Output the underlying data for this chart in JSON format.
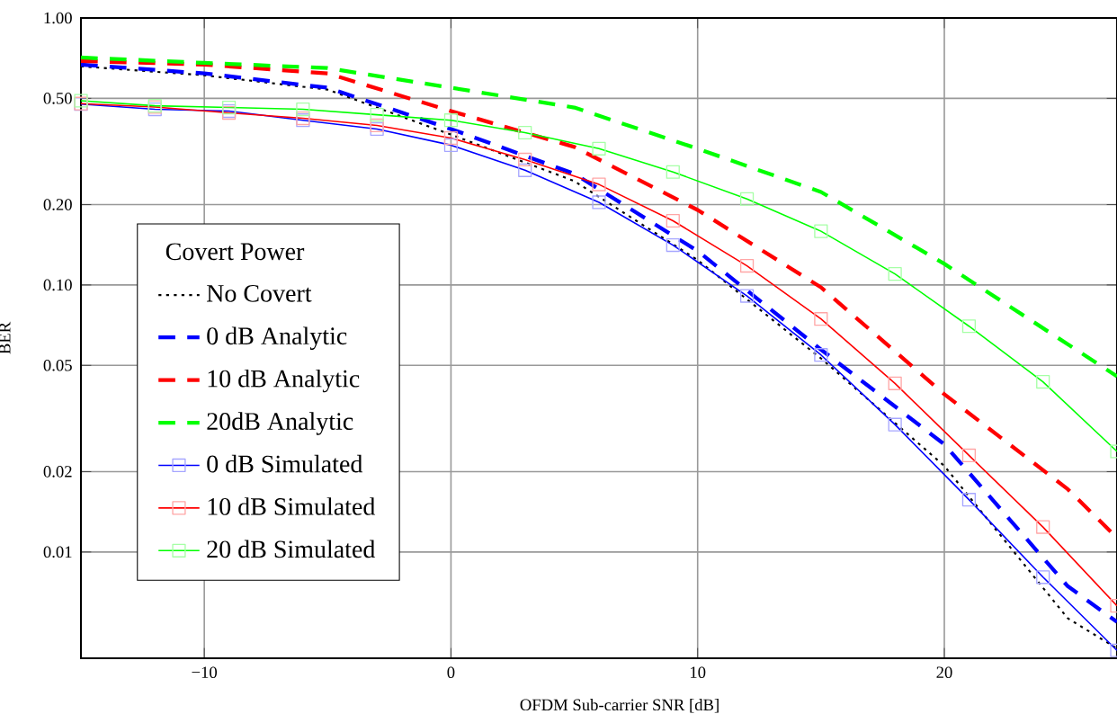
{
  "chart_data": {
    "type": "line",
    "xlabel": "OFDM Sub-carrier SNR [dB]",
    "ylabel": "BER",
    "legend_title": "Covert Power",
    "log": "y",
    "grid": true,
    "legend": "left",
    "xlim": [
      -15,
      27
    ],
    "xticks": [
      {
        "value": -10,
        "label": "−10"
      },
      0,
      10,
      20
    ],
    "ylim": [
      0.004,
      1
    ],
    "yticks": [
      {
        "value": 0.01,
        "label": "0.01"
      },
      {
        "value": 0.02,
        "label": "0.02"
      },
      {
        "value": 0.05,
        "label": "0.05"
      },
      {
        "value": 0.1,
        "label": "0.10"
      },
      {
        "value": 0.2,
        "label": "0.20"
      },
      {
        "value": 0.5,
        "label": "0.50"
      },
      {
        "value": 1,
        "label": "1.00"
      }
    ],
    "series": [
      {
        "name": "No Covert",
        "color": "#000000",
        "line_style": "dotted",
        "marker": "none",
        "x": [
          -15,
          -10,
          -5,
          0,
          5,
          10,
          15,
          20,
          25,
          27
        ],
        "values": [
          0.659,
          0.61,
          0.539,
          0.366,
          0.245,
          0.124,
          0.0531,
          0.021,
          0.00565,
          0.00435
        ]
      },
      {
        "name": "0 dB Analytic",
        "color": "#0000ff",
        "line_style": "dashed",
        "marker": "none",
        "x": [
          -15,
          -10,
          -5,
          0,
          5,
          10,
          15,
          20,
          25,
          27
        ],
        "values": [
          0.669,
          0.62,
          0.548,
          0.384,
          0.261,
          0.134,
          0.0573,
          0.0253,
          0.00745,
          0.00547
        ]
      },
      {
        "name": "10 dB Analytic",
        "color": "#ff0000",
        "line_style": "dashed",
        "marker": "none",
        "x": [
          -15,
          -10,
          -5,
          0,
          5,
          10,
          15,
          20,
          25,
          27
        ],
        "values": [
          0.69,
          0.669,
          0.62,
          0.448,
          0.329,
          0.191,
          0.098,
          0.039,
          0.0172,
          0.0113
        ]
      },
      {
        "name": "20dB Analytic",
        "color": "#00ff00",
        "line_style": "dashed",
        "marker": "none",
        "x": [
          -15,
          -10,
          -5,
          0,
          5,
          10,
          15,
          20,
          25,
          27
        ],
        "values": [
          0.711,
          0.679,
          0.649,
          0.548,
          0.462,
          0.324,
          0.223,
          0.12,
          0.06,
          0.0455
        ]
      },
      {
        "name": "0 dB Simulated",
        "color": "#0000ff",
        "line_style": "solid",
        "marker": "square",
        "x": [
          -15,
          -12,
          -9,
          -6,
          -3,
          0,
          3,
          6,
          9,
          12,
          15,
          18,
          21,
          24,
          27
        ],
        "values": [
          0.476,
          0.455,
          0.448,
          0.414,
          0.384,
          0.334,
          0.269,
          0.204,
          0.141,
          0.091,
          0.0547,
          0.03,
          0.0157,
          0.00805,
          0.00428
        ]
      },
      {
        "name": "10 dB Simulated",
        "color": "#ff0000",
        "line_style": "solid",
        "marker": "square",
        "x": [
          -15,
          -12,
          -9,
          -6,
          -3,
          0,
          3,
          6,
          9,
          12,
          15,
          18,
          21,
          24,
          27
        ],
        "values": [
          0.478,
          0.464,
          0.441,
          0.421,
          0.396,
          0.355,
          0.295,
          0.238,
          0.174,
          0.118,
          0.0746,
          0.0428,
          0.023,
          0.0124,
          0.00629
        ]
      },
      {
        "name": "20 dB Simulated",
        "color": "#00ff00",
        "line_style": "solid",
        "marker": "square",
        "x": [
          -15,
          -12,
          -9,
          -6,
          -3,
          0,
          3,
          6,
          9,
          12,
          15,
          18,
          21,
          24,
          27
        ],
        "values": [
          0.49,
          0.469,
          0.462,
          0.455,
          0.434,
          0.414,
          0.372,
          0.324,
          0.265,
          0.21,
          0.159,
          0.11,
          0.0701,
          0.0434,
          0.0238
        ]
      }
    ]
  }
}
